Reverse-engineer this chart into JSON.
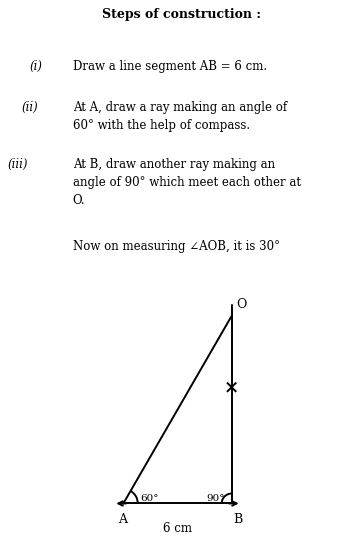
{
  "title_text": "Steps of construction :",
  "A": [
    0,
    0
  ],
  "B": [
    6,
    0
  ],
  "O": [
    6,
    10.392
  ],
  "label_A": "A",
  "label_B": "B",
  "label_O": "O",
  "label_AB": "6 cm",
  "label_angle_A": "60°",
  "label_angle_B": "90°",
  "line_color": "#000000",
  "bg_color": "#ffffff",
  "text_color": "#000000"
}
